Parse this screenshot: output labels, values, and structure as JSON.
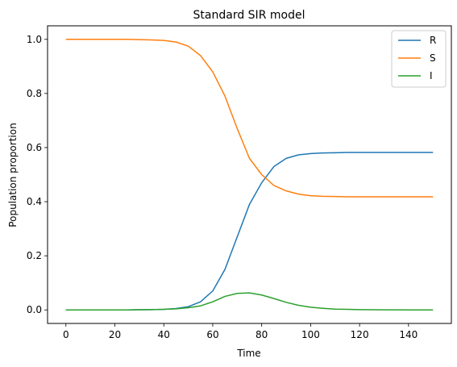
{
  "chart_data": {
    "type": "line",
    "title": "Standard SIR model",
    "xlabel": "Time",
    "ylabel": "Population proportion",
    "xlim": [
      -7.5,
      157.5
    ],
    "ylim": [
      -0.05,
      1.05
    ],
    "xticks": [
      0,
      20,
      40,
      60,
      80,
      100,
      120,
      140
    ],
    "yticks": [
      0.0,
      0.2,
      0.4,
      0.6,
      0.8,
      1.0
    ],
    "ytick_labels": [
      "0.0",
      "0.2",
      "0.4",
      "0.6",
      "0.8",
      "1.0"
    ],
    "grid": false,
    "legend": "top-right",
    "x": [
      0,
      5,
      10,
      15,
      20,
      25,
      30,
      35,
      40,
      45,
      50,
      55,
      60,
      65,
      70,
      75,
      80,
      85,
      90,
      95,
      100,
      105,
      110,
      115,
      120,
      125,
      130,
      135,
      140,
      145,
      150
    ],
    "series": [
      {
        "name": "R",
        "color": "#1f77b4",
        "values": [
          0.0,
          0.0,
          0.0,
          0.0,
          0.0,
          0.0,
          0.0005,
          0.001,
          0.002,
          0.005,
          0.012,
          0.03,
          0.07,
          0.15,
          0.27,
          0.39,
          0.47,
          0.53,
          0.56,
          0.573,
          0.578,
          0.58,
          0.581,
          0.582,
          0.582,
          0.582,
          0.582,
          0.582,
          0.582,
          0.582,
          0.582
        ]
      },
      {
        "name": "S",
        "color": "#ff7f0e",
        "values": [
          1.0,
          1.0,
          1.0,
          1.0,
          1.0,
          1.0,
          0.999,
          0.998,
          0.996,
          0.99,
          0.975,
          0.94,
          0.88,
          0.79,
          0.67,
          0.56,
          0.5,
          0.46,
          0.44,
          0.428,
          0.422,
          0.42,
          0.419,
          0.418,
          0.418,
          0.418,
          0.418,
          0.418,
          0.418,
          0.418,
          0.418
        ]
      },
      {
        "name": "I",
        "color": "#2ca02c",
        "values": [
          0.0,
          0.0,
          0.0,
          0.0,
          0.0,
          0.0,
          0.0005,
          0.001,
          0.002,
          0.004,
          0.008,
          0.015,
          0.03,
          0.05,
          0.061,
          0.063,
          0.055,
          0.042,
          0.028,
          0.017,
          0.01,
          0.006,
          0.003,
          0.002,
          0.001,
          0.0005,
          0.0003,
          0.0002,
          0.0001,
          0.0,
          0.0
        ]
      }
    ]
  }
}
